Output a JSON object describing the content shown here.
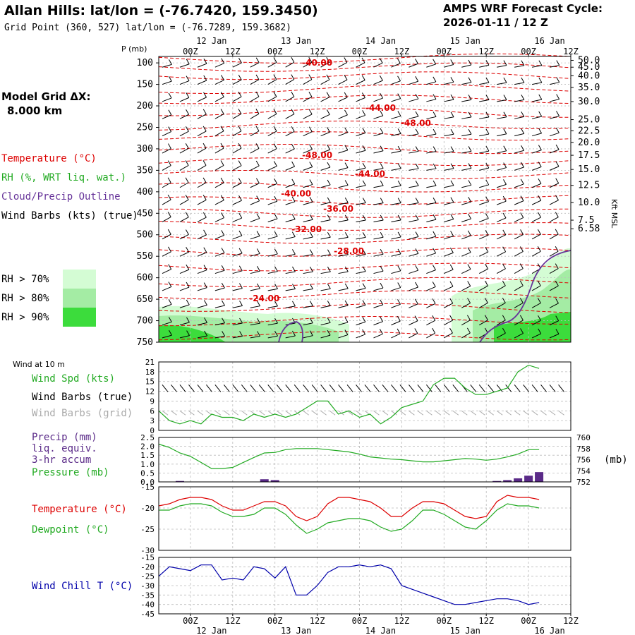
{
  "header": {
    "title": "Allan Hills:  lat/lon = (-76.7420, 159.3450)",
    "grid_point": "Grid Point (360, 527) lat/lon = (-76.7289, 159.3682)",
    "cycle_line1": "AMPS WRF Forecast Cycle:",
    "cycle_line2": "2026-01-11 / 12  Z"
  },
  "sidebar": {
    "model_grid_line1": "Model Grid ΔX:",
    "model_grid_line2": "8.000 km",
    "legend_temperature": "Temperature (°C)",
    "legend_rh": "RH (%, WRT liq. wat.)",
    "legend_cloud": "Cloud/Precip Outline",
    "legend_wind": "Wind Barbs (kts) (true)",
    "rh70": "RH > 70%",
    "rh80": "RH > 80%",
    "rh90": "RH > 90%"
  },
  "colors": {
    "temperature": "#dd0000",
    "rh": "#22aa22",
    "cloud": "#663399",
    "rh70": "#d4fcd4",
    "rh80": "#a4eca4",
    "rh90": "#3cdc3c",
    "wind_grid": "#aaaaaa",
    "wind_chill": "#0000aa",
    "precip": "#5a2a88"
  },
  "chart_data": [
    {
      "type": "heatmap",
      "panel": "cross-section",
      "ylabel": "P (mb)",
      "y_ticks": [
        100,
        150,
        200,
        250,
        300,
        350,
        400,
        450,
        500,
        550,
        600,
        650,
        700,
        750
      ],
      "ylim": [
        750,
        85
      ],
      "right_axis_label": "Kft MSL",
      "right_ticks": [
        "50.0",
        "45.0",
        "40.0",
        "35.0",
        "30.0",
        "25.0",
        "22.5",
        "20.0",
        "17.5",
        "15.0",
        "12.5",
        "10.0",
        "7.5",
        "6.58"
      ],
      "right_tick_pressures": [
        94,
        110,
        130,
        157,
        190,
        232,
        258,
        285,
        315,
        348,
        385,
        425,
        466,
        486
      ],
      "x_hours": [
        0,
        12,
        24,
        36,
        48,
        60,
        72,
        84,
        96,
        108
      ],
      "x_labels": [
        "00Z",
        "12Z",
        "00Z",
        "12Z",
        "00Z",
        "12Z",
        "00Z",
        "12Z",
        "00Z",
        "12Z"
      ],
      "x_dates": [
        "12 Jan",
        "13 Jan",
        "14 Jan",
        "15 Jan",
        "16 Jan"
      ],
      "xlim": [
        -9,
        108
      ],
      "temperature_contour_labels": [
        {
          "text": "-40.00",
          "h": 36,
          "p": 100
        },
        {
          "text": "-44.00",
          "h": 54,
          "p": 205
        },
        {
          "text": "-48.00",
          "h": 64,
          "p": 240
        },
        {
          "text": "-48.00",
          "h": 36,
          "p": 315
        },
        {
          "text": "-44.00",
          "h": 51,
          "p": 358
        },
        {
          "text": "-40.00",
          "h": 30,
          "p": 404
        },
        {
          "text": "-36.00",
          "h": 42,
          "p": 440
        },
        {
          "text": "-32.00",
          "h": 33,
          "p": 487
        },
        {
          "text": "-28.00",
          "h": 45,
          "p": 538
        },
        {
          "text": "-24.00",
          "h": 21,
          "p": 648
        }
      ]
    },
    {
      "type": "line",
      "panel": "surface wind",
      "title": "Wind at 10 m",
      "series": [
        {
          "name": "Wind Spd (kts)",
          "values": [
            6,
            3,
            2,
            3,
            2,
            5,
            4,
            4,
            3,
            5,
            4,
            5,
            4,
            5,
            7,
            9,
            9,
            5,
            6,
            4,
            5,
            2,
            4,
            7,
            8,
            9,
            14,
            16,
            16,
            13,
            11,
            11,
            12,
            13,
            18,
            20,
            19
          ]
        }
      ],
      "x_hours_start": -9,
      "x_step": 3,
      "y_ticks": [
        0,
        3,
        6,
        9,
        12,
        15,
        18,
        21
      ],
      "ylim": [
        0,
        21
      ],
      "legend": [
        "Wind Spd (kts)",
        "Wind Barbs (true)",
        "Wind Barbs (grid)"
      ]
    },
    {
      "type": "line",
      "panel": "precip/pressure",
      "series": [
        {
          "name": "Pressure (mb)",
          "values": [
            758.8,
            758.2,
            757.2,
            756.6,
            755.5,
            754.4,
            754.4,
            754.6,
            755.5,
            756.4,
            757.2,
            757.3,
            757.8,
            758,
            758,
            758,
            757.8,
            757.6,
            757.4,
            757,
            756.5,
            756.3,
            756.1,
            756,
            755.8,
            755.6,
            755.6,
            755.8,
            756,
            756.2,
            756.1,
            755.9,
            756.1,
            756.5,
            757,
            757.8,
            757.8
          ]
        },
        {
          "name": "Precip (mm)",
          "values": [
            0,
            0,
            0.05,
            0,
            0,
            0,
            0,
            0,
            0,
            0,
            0.15,
            0.1,
            0,
            0,
            0,
            0,
            0,
            0,
            0,
            0,
            0,
            0,
            0,
            0,
            0,
            0,
            0,
            0,
            0,
            0,
            0,
            0,
            0.05,
            0.1,
            0.2,
            0.35,
            0.55
          ]
        }
      ],
      "x_hours_start": -9,
      "x_step": 3,
      "y_ticks_left": [
        0,
        0.5,
        1,
        1.5,
        2,
        2.5
      ],
      "ylim_left": [
        0,
        2.5
      ],
      "y_ticks_right": [
        752,
        754,
        756,
        758,
        760
      ],
      "ylim_right": [
        752,
        760
      ],
      "right_unit": "(mb)",
      "legend": [
        "Precip (mm)",
        "liq. equiv.",
        "3-hr accum",
        "Pressure (mb)"
      ]
    },
    {
      "type": "line",
      "panel": "temperature/dewpoint",
      "series": [
        {
          "name": "Temperature (°C)",
          "values": [
            -19.5,
            -19,
            -18,
            -17.5,
            -17.5,
            -18,
            -19.5,
            -20.5,
            -20.5,
            -19.5,
            -18.5,
            -18.5,
            -19.5,
            -22,
            -23,
            -22,
            -19,
            -17.5,
            -17.5,
            -18,
            -18.5,
            -20,
            -22,
            -22,
            -20,
            -18.5,
            -18.5,
            -19,
            -20.5,
            -22,
            -22.5,
            -22,
            -18.5,
            -17,
            -17.5,
            -17.5,
            -18
          ]
        },
        {
          "name": "Dewpoint (°C)",
          "values": [
            -20.5,
            -20.5,
            -19.5,
            -19,
            -19,
            -19.5,
            -21,
            -22,
            -22,
            -21.5,
            -20,
            -20,
            -21.5,
            -24,
            -26,
            -25,
            -23.5,
            -23,
            -22.5,
            -22.5,
            -23,
            -24.5,
            -25.5,
            -25,
            -23,
            -20.5,
            -20.5,
            -21.5,
            -23,
            -24.5,
            -25,
            -23,
            -20.5,
            -19,
            -19.5,
            -19.5,
            -20
          ]
        }
      ],
      "x_hours_start": -9,
      "x_step": 3,
      "y_ticks": [
        -30,
        -25,
        -20,
        -15
      ],
      "ylim": [
        -30,
        -15
      ]
    },
    {
      "type": "line",
      "panel": "wind chill",
      "series": [
        {
          "name": "Wind Chill T (°C)",
          "values": [
            -25,
            -20,
            -21,
            -22,
            -19,
            -19,
            -27,
            -26,
            -27,
            -20,
            -21,
            -26,
            -20,
            -35,
            -35,
            -30,
            -23,
            -20,
            -20,
            -19,
            -20,
            -19,
            -21,
            -30,
            -32,
            -34,
            -36,
            -38,
            -40,
            -40,
            -39,
            -38,
            -37,
            -37,
            -38,
            -40,
            -39
          ]
        }
      ],
      "x_hours_start": -9,
      "x_step": 3,
      "y_ticks": [
        -45,
        -40,
        -35,
        -30,
        -25,
        -20,
        -15
      ],
      "ylim": [
        -45,
        -15
      ]
    }
  ],
  "bottom_axis": {
    "x_labels": [
      "00Z",
      "12Z",
      "00Z",
      "12Z",
      "00Z",
      "12Z",
      "00Z",
      "12Z",
      "00Z",
      "12Z"
    ],
    "x_dates": [
      "12 Jan",
      "13 Jan",
      "14 Jan",
      "15 Jan",
      "16 Jan"
    ]
  },
  "panel_legends": {
    "wind_title": "Wind at 10 m",
    "wind_spd": "Wind Spd (kts)",
    "wind_barbs_true": "Wind Barbs (true)",
    "wind_barbs_grid": "Wind Barbs (grid)",
    "precip1": "Precip (mm)",
    "precip2": "liq. equiv.",
    "precip3": "3-hr accum",
    "pressure": "Pressure (mb)",
    "pressure_unit": "(mb)",
    "temperature": "Temperature (°C)",
    "dewpoint": "Dewpoint (°C)",
    "wind_chill": "Wind Chill T (°C)",
    "p_axis": "P (mb)",
    "kft_axis": "Kft MSL"
  }
}
